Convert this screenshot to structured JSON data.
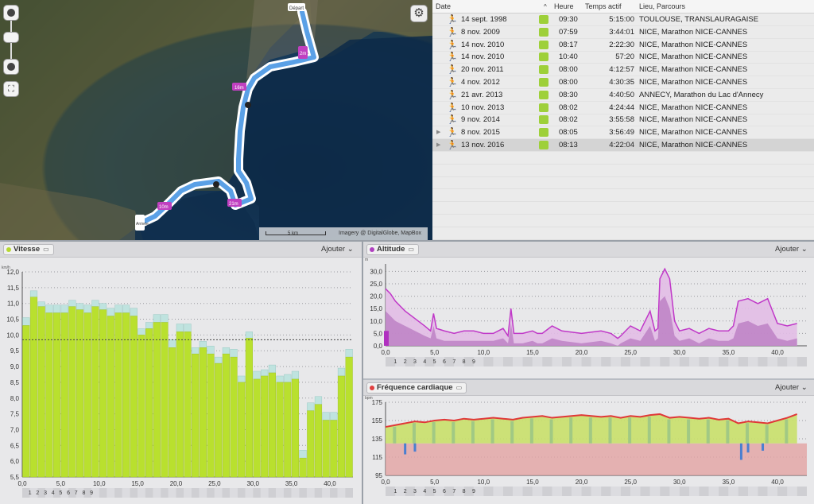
{
  "map": {
    "credit": "Imagery @ DigitalGlobe, MapBox",
    "scale_label": "5 km",
    "markers": [
      "Départ",
      "Arrivée",
      "16m",
      "10m",
      "2m",
      "21m",
      "8m"
    ],
    "colors": {
      "route_outer": "#ffffff",
      "route_inner": "#5aa0e6",
      "marker": "#c040c0"
    }
  },
  "table": {
    "headers": {
      "date": "Date",
      "heure": "Heure",
      "temps": "Temps actif",
      "lieu": "Lieu, Parcours"
    },
    "rows": [
      {
        "date": "14 sept. 1998",
        "heure": "09:30",
        "temps": "5:15:00",
        "lieu": "TOULOUSE, TRANSLAURAGAISE",
        "expandable": false,
        "selected": false
      },
      {
        "date": "8 nov. 2009",
        "heure": "07:59",
        "temps": "3:44:01",
        "lieu": "NICE, Marathon NICE-CANNES",
        "expandable": false,
        "selected": false
      },
      {
        "date": "14 nov. 2010",
        "heure": "08:17",
        "temps": "2:22:30",
        "lieu": "NICE, Marathon NICE-CANNES",
        "expandable": false,
        "selected": false
      },
      {
        "date": "14 nov. 2010",
        "heure": "10:40",
        "temps": "57:20",
        "lieu": "NICE, Marathon NICE-CANNES",
        "expandable": false,
        "selected": false
      },
      {
        "date": "20 nov. 2011",
        "heure": "08:00",
        "temps": "4:12:57",
        "lieu": "NICE, Marathon NICE-CANNES",
        "expandable": false,
        "selected": false
      },
      {
        "date": "4 nov. 2012",
        "heure": "08:00",
        "temps": "4:30:35",
        "lieu": "NICE, Marathon NICE-CANNES",
        "expandable": false,
        "selected": false
      },
      {
        "date": "21 avr. 2013",
        "heure": "08:30",
        "temps": "4:40:50",
        "lieu": "ANNECY, Marathon du Lac d'Annecy",
        "expandable": false,
        "selected": false
      },
      {
        "date": "10 nov. 2013",
        "heure": "08:02",
        "temps": "4:24:44",
        "lieu": "NICE, Marathon NICE-CANNES",
        "expandable": false,
        "selected": false
      },
      {
        "date": "9 nov. 2014",
        "heure": "08:02",
        "temps": "3:55:58",
        "lieu": "NICE, Marathon NICE-CANNES",
        "expandable": false,
        "selected": false
      },
      {
        "date": "8 nov. 2015",
        "heure": "08:05",
        "temps": "3:56:49",
        "lieu": "NICE, Marathon NICE-CANNES",
        "expandable": true,
        "selected": false
      },
      {
        "date": "13 nov. 2016",
        "heure": "08:13",
        "temps": "4:22:04",
        "lieu": "NICE, Marathon NICE-CANNES",
        "expandable": true,
        "selected": true
      }
    ],
    "swatch_color": "#9ed03a"
  },
  "panels": {
    "vitesse": {
      "title": "Vitesse",
      "add": "Ajouter",
      "dot_color": "#b7d830",
      "unit": "km/h"
    },
    "altitude": {
      "title": "Altitude",
      "add": "Ajouter",
      "dot_color": "#b040c0",
      "unit": "m"
    },
    "fc": {
      "title": "Fréquence cardiaque",
      "add": "Ajouter",
      "dot_color": "#e04040",
      "unit": "bpm"
    }
  },
  "chart_data": [
    {
      "type": "bar",
      "name": "Vitesse",
      "xlim": [
        0,
        43
      ],
      "ylim": [
        5.5,
        12.0
      ],
      "x_ticks": [
        "0,0",
        "5,0",
        "10,0",
        "15,0",
        "20,0",
        "25,0",
        "30,0",
        "35,0",
        "40,0"
      ],
      "y_ticks": [
        "5,5",
        "6,0",
        "6,5",
        "7,0",
        "7,5",
        "8,0",
        "8,5",
        "9,0",
        "9,5",
        "10,0",
        "10,5",
        "11,0",
        "11,5",
        "12,0"
      ],
      "avg": 9.85,
      "values": [
        10.3,
        11.2,
        10.9,
        10.7,
        10.7,
        10.7,
        10.9,
        10.8,
        10.7,
        10.9,
        10.8,
        10.6,
        10.7,
        10.7,
        10.6,
        10.0,
        10.2,
        10.4,
        10.4,
        9.6,
        10.1,
        10.1,
        9.4,
        9.6,
        9.4,
        9.1,
        9.4,
        9.3,
        8.5,
        9.9,
        8.6,
        8.7,
        8.8,
        8.5,
        8.5,
        8.6,
        6.1,
        7.6,
        7.8,
        7.3,
        7.3,
        8.7,
        9.3
      ],
      "tops": [
        10.55,
        11.4,
        11.05,
        10.95,
        10.95,
        10.95,
        11.1,
        11.0,
        10.95,
        11.1,
        11.0,
        10.85,
        10.95,
        10.95,
        10.85,
        10.2,
        10.4,
        10.65,
        10.65,
        9.85,
        10.35,
        10.35,
        9.6,
        9.8,
        9.65,
        9.3,
        9.6,
        9.55,
        8.7,
        10.1,
        8.85,
        8.9,
        9.05,
        8.7,
        8.75,
        8.85,
        6.35,
        7.85,
        8.05,
        7.55,
        7.55,
        8.95,
        9.55
      ]
    },
    {
      "type": "area",
      "name": "Altitude",
      "xlim": [
        0,
        43
      ],
      "ylim": [
        0,
        33
      ],
      "x_ticks": [
        "0,0",
        "5,0",
        "10,0",
        "15,0",
        "20,0",
        "25,0",
        "30,0",
        "35,0",
        "40,0"
      ],
      "y_ticks": [
        "0,0",
        "5,0",
        "10,0",
        "15,0",
        "20,0",
        "25,0",
        "30,0"
      ],
      "x": [
        0,
        0.5,
        1,
        2,
        3,
        4,
        4.6,
        4.9,
        5.2,
        6,
        7,
        8,
        9,
        10,
        11,
        12,
        12.5,
        12.8,
        13.1,
        14,
        15,
        15.5,
        16,
        17,
        18,
        20,
        22,
        23,
        23.7,
        24,
        24.5,
        25,
        26,
        27,
        27.5,
        27.8,
        28,
        28.5,
        29,
        29.5,
        30,
        31,
        32,
        33,
        34,
        35,
        35.5,
        36,
        37,
        38,
        39,
        40,
        41,
        42
      ],
      "values": [
        23,
        21,
        18,
        14,
        11,
        8,
        6,
        13,
        7,
        6,
        5,
        6,
        6,
        5,
        5,
        7,
        4,
        15,
        5,
        5,
        6,
        5,
        5,
        8,
        6,
        5,
        6,
        5,
        3,
        4,
        6,
        8,
        6,
        14,
        6,
        7,
        27,
        31,
        27,
        10,
        6,
        7,
        5,
        7,
        6,
        6,
        8,
        18,
        19,
        17,
        19,
        9,
        8,
        9
      ],
      "under": [
        14,
        12,
        10,
        8,
        6,
        4,
        3,
        8,
        3,
        2,
        2,
        2,
        2,
        2,
        2,
        3,
        1,
        9,
        1,
        1,
        2,
        1,
        1,
        3,
        2,
        1,
        2,
        1,
        0,
        1,
        2,
        3,
        2,
        8,
        2,
        3,
        18,
        20,
        15,
        4,
        2,
        3,
        1,
        3,
        2,
        2,
        3,
        9,
        10,
        8,
        9,
        3,
        2,
        3
      ]
    },
    {
      "type": "area",
      "name": "Fréquence cardiaque",
      "xlim": [
        0,
        43
      ],
      "ylim": [
        95,
        175
      ],
      "x_ticks": [
        "0,0",
        "5,0",
        "10,0",
        "15,0",
        "20,0",
        "25,0",
        "30,0",
        "35,0",
        "40,0"
      ],
      "y_ticks": [
        "95",
        "115",
        "135",
        "155",
        "175"
      ],
      "x": [
        0,
        1,
        2,
        3,
        4,
        5,
        6,
        7,
        8,
        9,
        10,
        11,
        12,
        13,
        14,
        15,
        16,
        17,
        18,
        19,
        20,
        21,
        22,
        23,
        24,
        25,
        26,
        27,
        28,
        29,
        30,
        31,
        32,
        33,
        34,
        35,
        36,
        37,
        38,
        39,
        40,
        41,
        42
      ],
      "values": [
        148,
        150,
        152,
        154,
        153,
        155,
        156,
        155,
        157,
        156,
        157,
        158,
        157,
        156,
        158,
        159,
        160,
        158,
        159,
        160,
        161,
        160,
        159,
        160,
        158,
        160,
        159,
        161,
        162,
        158,
        159,
        158,
        157,
        158,
        156,
        157,
        152,
        154,
        153,
        152,
        155,
        158,
        162
      ]
    }
  ],
  "km_labels": [
    "1",
    "2",
    "3",
    "4",
    "5",
    "6",
    "7",
    "8",
    "9"
  ]
}
